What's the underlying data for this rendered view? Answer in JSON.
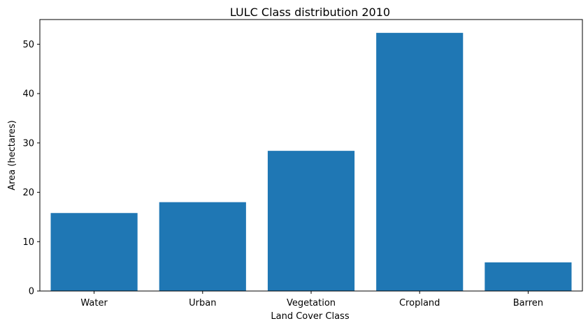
{
  "chart_data": {
    "type": "bar",
    "title": "LULC Class distribution 2010",
    "xlabel": "Land Cover Class",
    "ylabel": "Area (hectares)",
    "categories": [
      "Water",
      "Urban",
      "Vegetation",
      "Cropland",
      "Barren"
    ],
    "values": [
      15.8,
      18.0,
      28.4,
      52.3,
      5.8
    ],
    "ylim": [
      0,
      55
    ],
    "yticks": [
      0,
      10,
      20,
      30,
      40,
      50
    ],
    "bar_color": "#1f77b4",
    "grid": false,
    "legend": "none"
  }
}
